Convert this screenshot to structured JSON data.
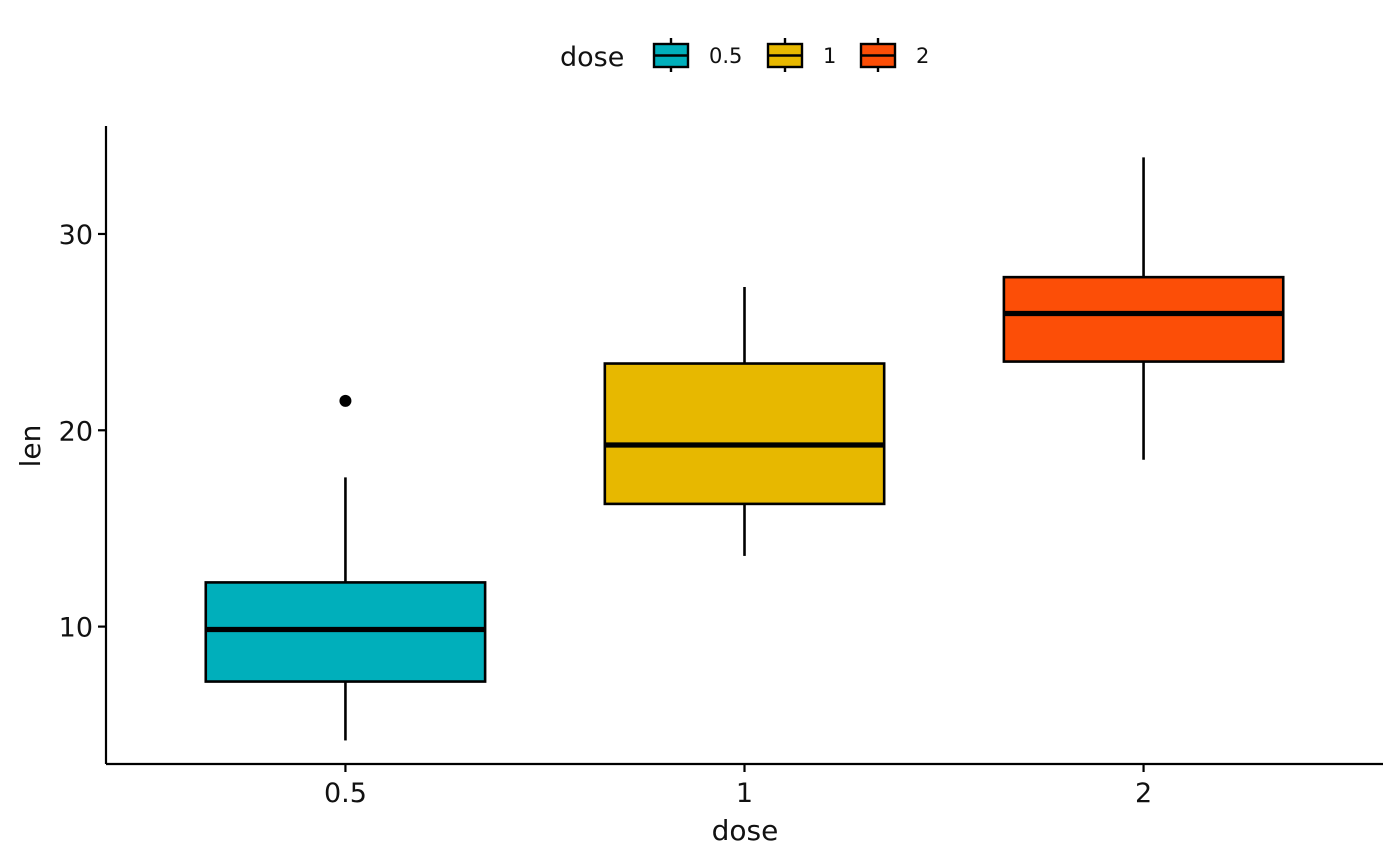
{
  "chart_data": {
    "type": "boxplot",
    "title": "",
    "xlabel": "dose",
    "ylabel": "len",
    "categories": [
      "0.5",
      "1",
      "2"
    ],
    "ylim": [
      3,
      35.5
    ],
    "yticks": [
      10,
      20,
      30
    ],
    "ytick_labels": [
      "10",
      "20",
      "30"
    ],
    "grid": false,
    "legend": {
      "title": "dose",
      "position": "top",
      "entries": [
        "0.5",
        "1",
        "2"
      ]
    },
    "boxes": [
      {
        "category": "0.5",
        "color": "#00AFBB",
        "whisker_low": 4.2,
        "q1": 7.2,
        "median": 9.85,
        "q3": 12.25,
        "whisker_high": 17.6,
        "outliers": [
          21.5
        ]
      },
      {
        "category": "1",
        "color": "#E7B800",
        "whisker_low": 13.6,
        "q1": 16.25,
        "median": 19.25,
        "q3": 23.4,
        "whisker_high": 27.3,
        "outliers": []
      },
      {
        "category": "2",
        "color": "#FC4E07",
        "whisker_low": 18.5,
        "q1": 23.5,
        "median": 25.95,
        "q3": 27.8,
        "whisker_high": 33.9,
        "outliers": []
      }
    ]
  }
}
